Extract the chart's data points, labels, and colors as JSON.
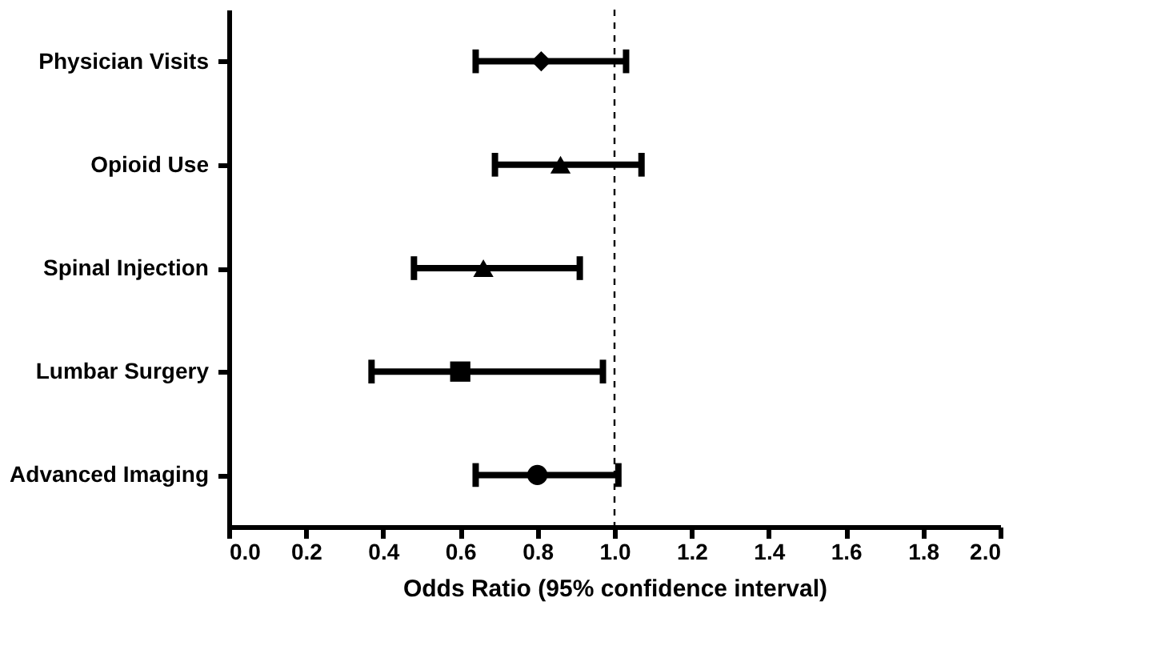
{
  "chart_data": {
    "type": "scatter",
    "orientation": "horizontal",
    "xlabel": "Odds Ratio (95% confidence interval)",
    "categories": [
      "Physician Visits",
      "Opioid Use",
      "Spinal Injection",
      "Lumbar Surgery",
      "Advanced Imaging"
    ],
    "series": [
      {
        "color": "#000000",
        "marker": "diamond",
        "values": [
          0.81,
          null,
          null,
          null,
          null
        ],
        "errors": [
          [
            0.64,
            1.03
          ],
          null,
          null,
          null,
          null
        ]
      },
      {
        "color": "#000000",
        "marker": "triangle",
        "values": [
          null,
          0.86,
          null,
          null,
          null
        ],
        "errors": [
          null,
          [
            0.69,
            1.07
          ],
          null,
          null,
          null
        ]
      },
      {
        "color": "#000000",
        "marker": "triangle",
        "values": [
          null,
          null,
          0.66,
          null,
          null
        ],
        "errors": [
          null,
          null,
          [
            0.48,
            0.91
          ],
          null,
          null
        ]
      },
      {
        "color": "#000000",
        "marker": "square",
        "values": [
          null,
          null,
          null,
          0.6,
          null
        ],
        "errors": [
          null,
          null,
          null,
          [
            0.37,
            0.97
          ],
          null
        ]
      },
      {
        "color": "#000000",
        "marker": "circle",
        "values": [
          null,
          null,
          null,
          null,
          0.8
        ],
        "errors": [
          null,
          null,
          null,
          null,
          [
            0.64,
            1.01
          ]
        ]
      }
    ],
    "xlim": [
      0,
      2
    ],
    "xticks": [
      {
        "value": 0,
        "label": "0.0"
      },
      0.2,
      0.4,
      0.6,
      0.8,
      {
        "value": 1,
        "label": "1.0"
      },
      1.2,
      1.4,
      1.6,
      1.8,
      {
        "value": 2,
        "label": "2.0"
      }
    ],
    "ref_lines": [
      {
        "axis": "x",
        "value": 1,
        "line_style": "dashed",
        "color": "#000000"
      }
    ],
    "grid": false,
    "legend": false
  }
}
